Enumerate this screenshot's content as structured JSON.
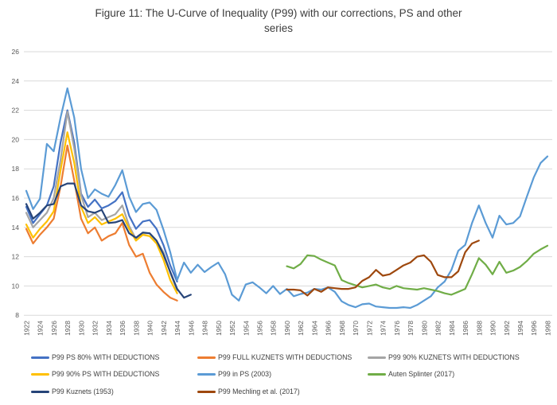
{
  "title": "Figure 11: The U-Curve of Inequality (P99) with our corrections, PS and other series",
  "chart_data": {
    "type": "line",
    "title": "Figure 11: The U-Curve of Inequality (P99) with our corrections, PS and other series",
    "xlabel": "",
    "ylabel": "",
    "ylim": [
      8,
      26
    ],
    "ytick_step": 2,
    "yticks": [
      8,
      10,
      12,
      14,
      16,
      18,
      20,
      22,
      24,
      26
    ],
    "xticks": [
      1922,
      1924,
      1926,
      1928,
      1930,
      1932,
      1934,
      1936,
      1938,
      1940,
      1942,
      1944,
      1946,
      1948,
      1950,
      1952,
      1954,
      1956,
      1958,
      1960,
      1962,
      1964,
      1966,
      1968,
      1970,
      1972,
      1974,
      1976,
      1978,
      1980,
      1982,
      1984,
      1986,
      1988,
      1990,
      1992,
      1994,
      1996,
      1998
    ],
    "x_label_rotation": 90,
    "grid": true,
    "gridline_color": "#d9d9d9",
    "axis_text_color": "#595959",
    "legend_position": "bottom",
    "series": [
      {
        "name": "P99 PS 80% WITH DEDUCTIONS",
        "color": "#4472C4",
        "start_year": 1922,
        "values": [
          15.4,
          14.3,
          14.9,
          15.5,
          16.8,
          19.8,
          22.0,
          19.8,
          16.3,
          15.4,
          15.9,
          15.3,
          15.5,
          15.8,
          16.4,
          14.8,
          13.9,
          14.4,
          14.5,
          13.9,
          12.8,
          11.4,
          10.3
        ]
      },
      {
        "name": "P99 FULL KUZNETS WITH DEDUCTIONS",
        "color": "#ED7D31",
        "start_year": 1922,
        "values": [
          13.9,
          12.9,
          13.5,
          14.0,
          14.6,
          16.8,
          19.6,
          17.2,
          14.6,
          13.6,
          14.0,
          13.1,
          13.4,
          13.6,
          14.3,
          12.8,
          12.0,
          12.2,
          10.9,
          10.1,
          9.6,
          9.2,
          9.0
        ]
      },
      {
        "name": "P99 90% KUZNETS WITH DEDUCTIONS",
        "color": "#A5A5A5",
        "start_year": 1922,
        "values": [
          15.0,
          14.0,
          14.5,
          15.0,
          16.0,
          18.6,
          21.9,
          19.4,
          16.2,
          14.7,
          15.0,
          14.5,
          14.7,
          14.9,
          15.5,
          14.1,
          13.2,
          13.6,
          13.6,
          13.1,
          12.3,
          10.9,
          9.7
        ]
      },
      {
        "name": "P99 90% PS WITH DEDUCTIONS",
        "color": "#FFC000",
        "start_year": 1922,
        "values": [
          14.2,
          13.3,
          13.9,
          14.4,
          15.1,
          17.9,
          20.5,
          18.4,
          15.4,
          14.3,
          14.7,
          14.2,
          14.4,
          14.6,
          14.9,
          13.9,
          13.1,
          13.5,
          13.4,
          12.9,
          11.8,
          10.4,
          9.5
        ]
      },
      {
        "name": "P99 in PS (2003)",
        "color": "#5B9BD5",
        "start_year": 1922,
        "values": [
          16.5,
          15.25,
          15.95,
          19.7,
          19.2,
          21.5,
          23.5,
          21.5,
          18.0,
          16.0,
          16.6,
          16.3,
          16.1,
          16.9,
          17.9,
          16.1,
          15.05,
          15.6,
          15.7,
          15.2,
          13.85,
          12.3,
          10.4,
          11.6,
          10.9,
          11.45,
          10.95,
          11.3,
          11.6,
          10.8,
          9.4,
          9.0,
          10.1,
          10.25,
          9.9,
          9.5,
          10.0,
          9.45,
          9.8,
          9.3,
          9.45,
          9.55,
          9.8,
          9.75,
          9.9,
          9.6,
          8.95,
          8.7,
          8.55,
          8.75,
          8.8,
          8.6,
          8.55,
          8.5,
          8.5,
          8.55,
          8.5,
          8.7,
          9.0,
          9.3,
          9.9,
          10.3,
          11.1,
          12.4,
          12.8,
          14.3,
          15.5,
          14.3,
          13.3,
          14.8,
          14.2,
          14.3,
          14.75,
          16.1,
          17.4,
          18.4,
          18.85
        ]
      },
      {
        "name": "Auten Splinter (2017)",
        "color": "#70AD47",
        "start_year": 1960,
        "values": [
          11.35,
          11.2,
          11.5,
          12.1,
          12.05,
          11.8,
          11.6,
          11.4,
          10.4,
          10.2,
          10.05,
          9.9,
          10.0,
          10.1,
          9.9,
          9.8,
          10.0,
          9.85,
          9.8,
          9.75,
          9.85,
          9.75,
          9.65,
          9.5,
          9.4,
          9.6,
          9.8,
          10.8,
          11.9,
          11.45,
          10.8,
          11.65,
          10.9,
          11.05,
          11.3,
          11.7,
          12.2,
          12.5,
          12.75
        ]
      },
      {
        "name": "P99 Kuznets (1953)",
        "color": "#264478",
        "start_year": 1922,
        "values": [
          15.6,
          14.6,
          15.0,
          15.5,
          15.6,
          16.8,
          17.0,
          17.0,
          15.5,
          15.1,
          15.0,
          15.2,
          14.3,
          14.35,
          14.5,
          13.6,
          13.3,
          13.65,
          13.6,
          13.1,
          12.15,
          10.95,
          9.8,
          9.2,
          9.4
        ]
      },
      {
        "name": "P99 Mechling et al. (2017)",
        "color": "#9E480E",
        "start_year": 1960,
        "values": [
          9.75,
          9.75,
          9.7,
          9.35,
          9.8,
          9.6,
          9.9,
          9.85,
          9.8,
          9.8,
          9.9,
          10.35,
          10.6,
          11.1,
          10.7,
          10.8,
          11.1,
          11.4,
          11.6,
          12.0,
          12.1,
          11.65,
          10.75,
          10.6,
          10.6,
          11.0,
          12.3,
          12.9,
          13.1
        ]
      }
    ]
  }
}
